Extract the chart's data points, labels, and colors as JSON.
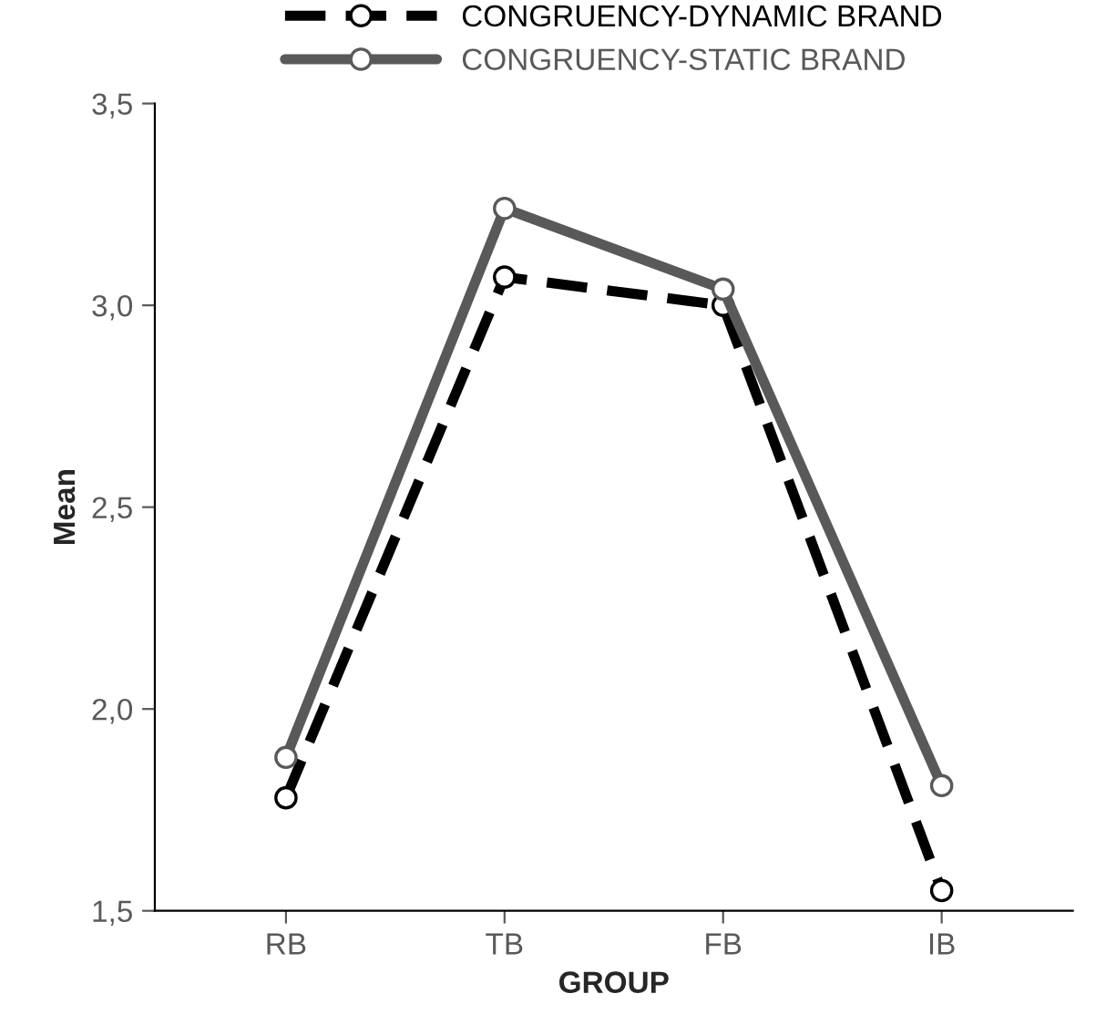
{
  "chart_data": {
    "type": "line",
    "xlabel": "GROUP",
    "ylabel": "Mean",
    "categories": [
      "RB",
      "TB",
      "FB",
      "IB"
    ],
    "series": [
      {
        "name": "CONGRUENCY-DYNAMIC BRAND",
        "color": "#000000",
        "values": [
          1.78,
          3.07,
          3.0,
          1.55
        ],
        "line_style": "dashed"
      },
      {
        "name": "CONGRUENCY-STATIC BRAND",
        "color": "#595959",
        "values": [
          1.88,
          3.24,
          3.04,
          1.81
        ],
        "line_style": "solid"
      }
    ],
    "ylim": [
      1.5,
      3.5
    ],
    "yticks": [
      {
        "value": 1.5,
        "label": "1,5"
      },
      {
        "value": 2.0,
        "label": "2,0"
      },
      {
        "value": 2.5,
        "label": "2,5"
      },
      {
        "value": 3.0,
        "label": "3,0"
      },
      {
        "value": 3.5,
        "label": "3,5"
      }
    ],
    "marker": "circle",
    "grid": false,
    "legend": "top"
  }
}
